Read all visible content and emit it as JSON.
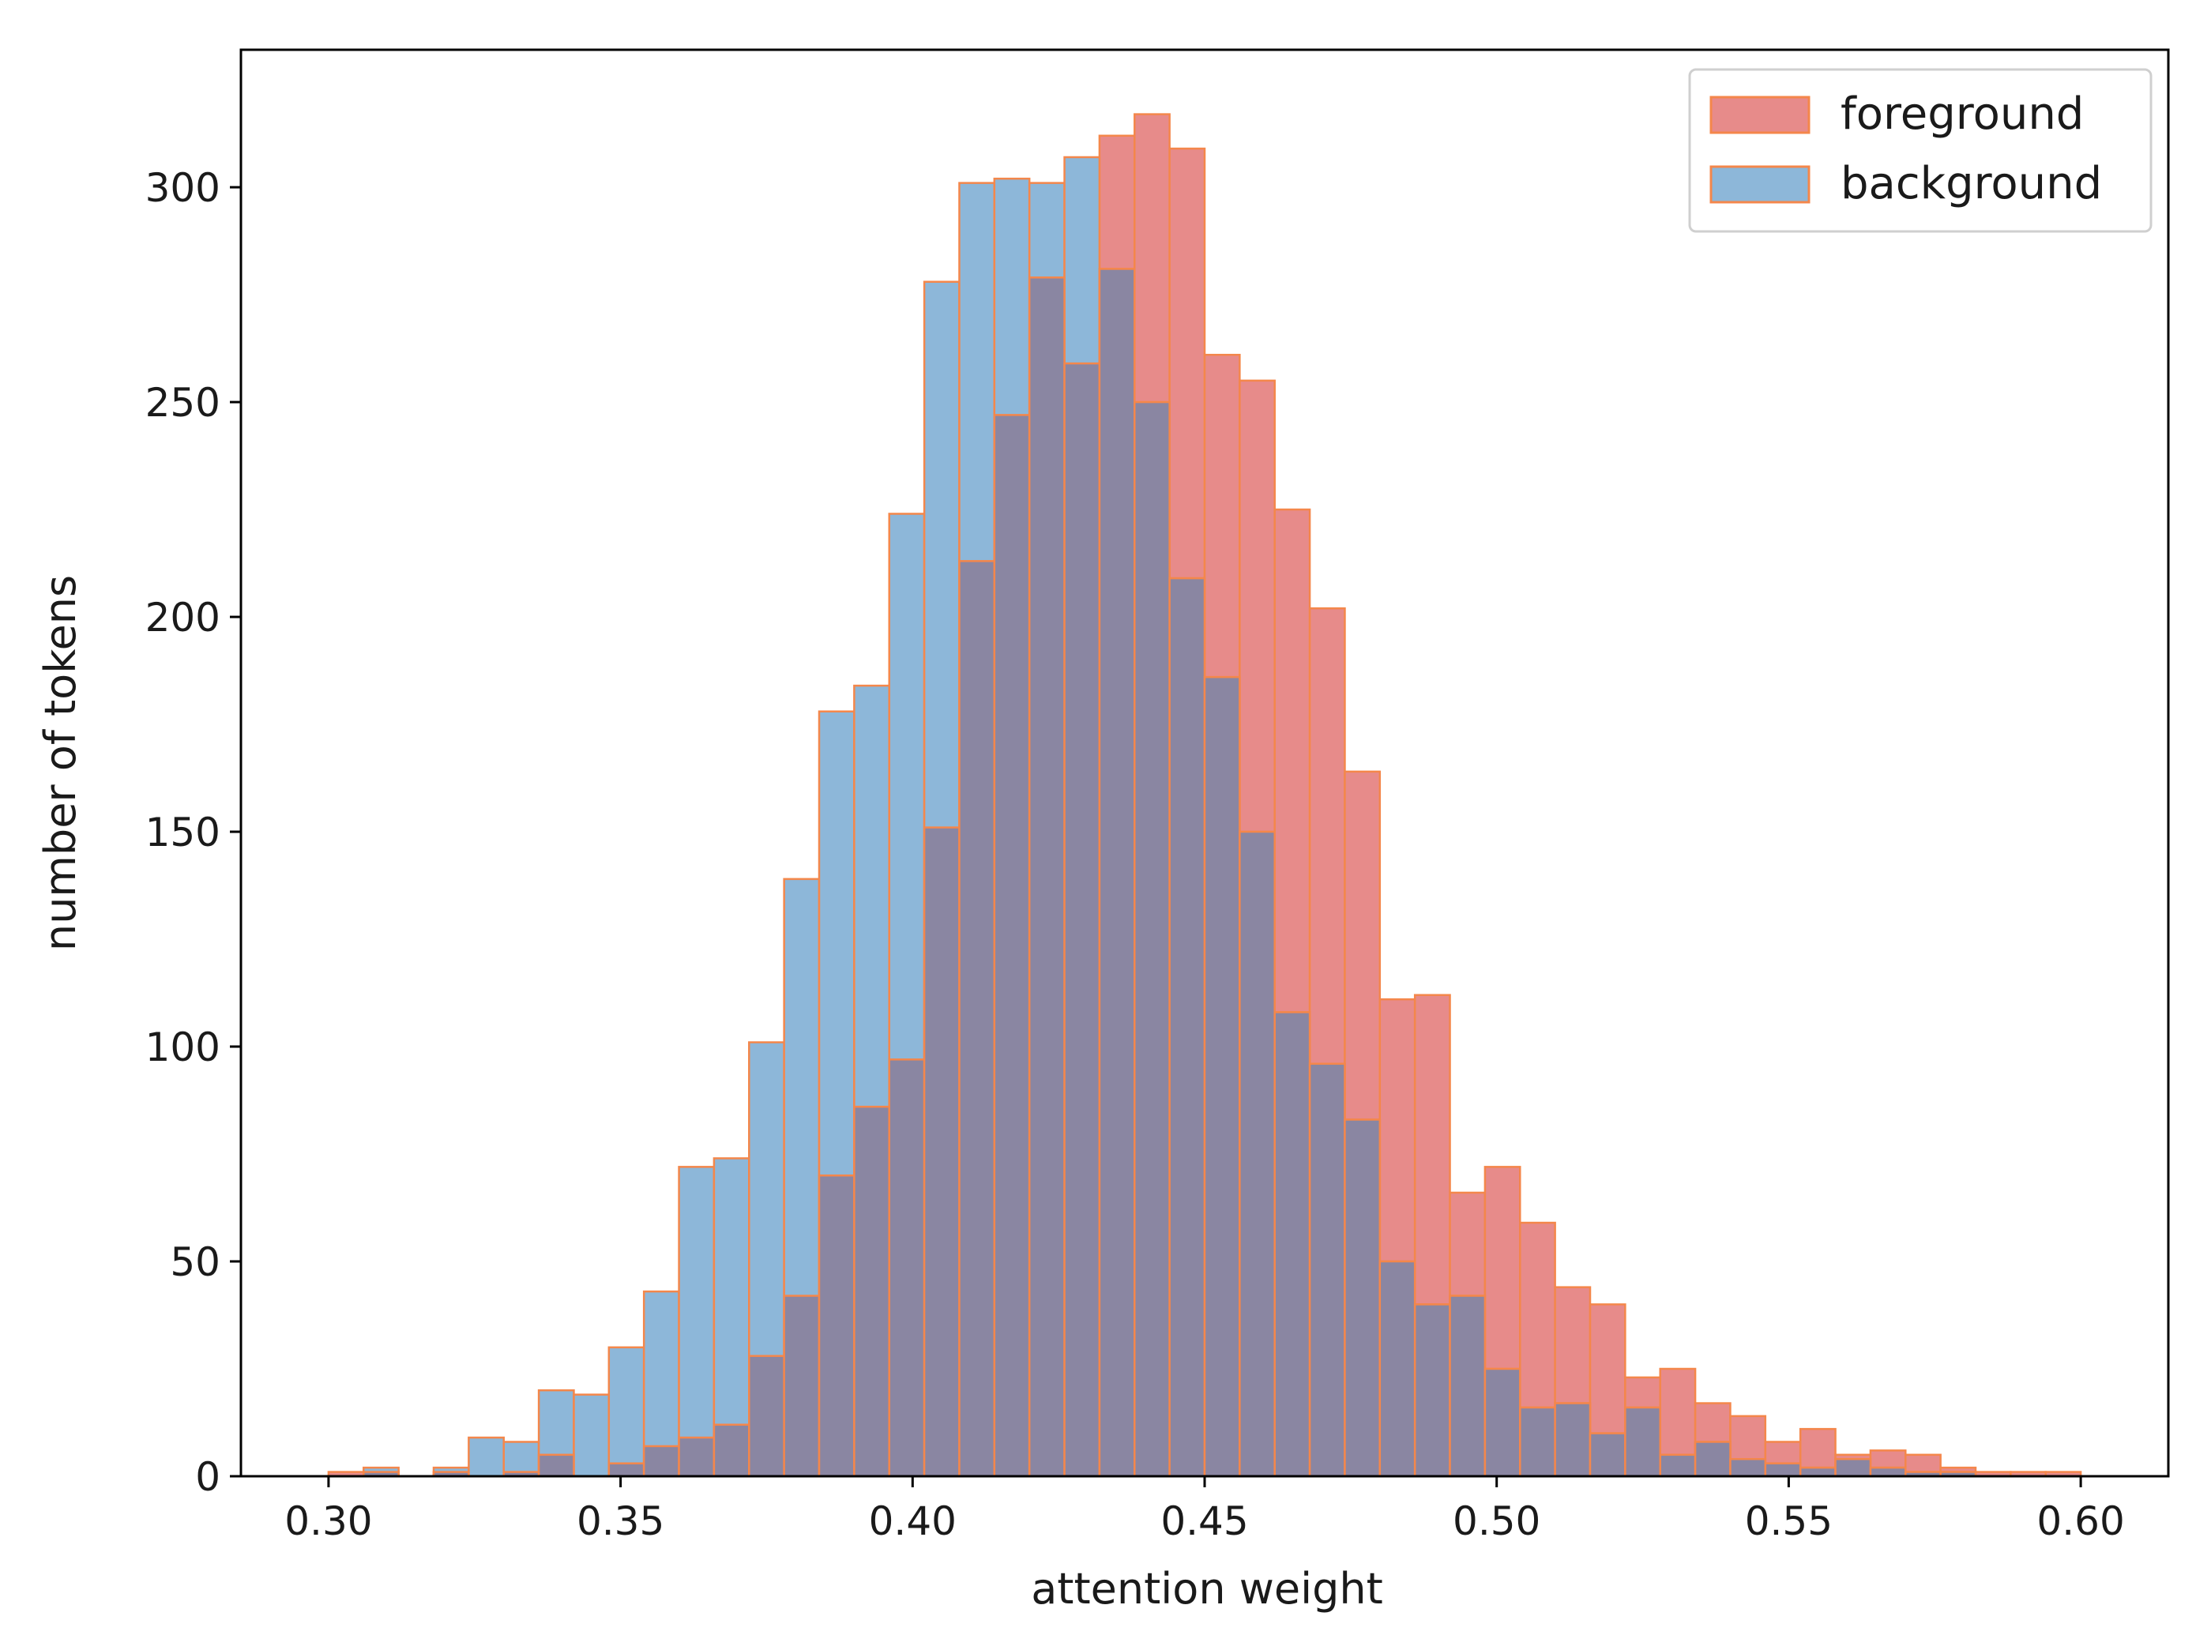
{
  "chart_data": {
    "type": "bar",
    "subtype": "overlaid-histogram",
    "title": "",
    "xlabel": "attention weight",
    "ylabel": "number of tokens",
    "xlim": [
      0.285,
      0.615
    ],
    "ylim": [
      0,
      332
    ],
    "x_ticks": [
      0.3,
      0.35,
      0.4,
      0.45,
      0.5,
      0.55,
      0.6
    ],
    "x_tick_labels": [
      "0.30",
      "0.35",
      "0.40",
      "0.45",
      "0.50",
      "0.55",
      "0.60"
    ],
    "y_ticks": [
      0,
      50,
      100,
      150,
      200,
      250,
      300
    ],
    "y_tick_labels": [
      "0",
      "50",
      "100",
      "150",
      "200",
      "250",
      "300"
    ],
    "bin_start": 0.3,
    "bin_width": 0.006,
    "edge_color": "#F4874B",
    "overlap_color": "#8A86A2",
    "legend_position": "top-right",
    "series": [
      {
        "name": "foreground",
        "color": "#E78B8A",
        "values": [
          1,
          1,
          0,
          1,
          0,
          1,
          5,
          0,
          3,
          7,
          9,
          12,
          28,
          42,
          70,
          86,
          97,
          151,
          213,
          247,
          279,
          259,
          312,
          317,
          309,
          261,
          255,
          225,
          202,
          164,
          111,
          112,
          66,
          72,
          59,
          44,
          40,
          23,
          25,
          17,
          14,
          8,
          11,
          5,
          6,
          5,
          2,
          1,
          1,
          1,
          0
        ]
      },
      {
        "name": "background",
        "color": "#8DB7D9",
        "values": [
          0,
          2,
          0,
          2,
          9,
          8,
          20,
          19,
          30,
          43,
          72,
          74,
          101,
          139,
          178,
          184,
          224,
          278,
          301,
          302,
          301,
          307,
          281,
          250,
          209,
          186,
          150,
          108,
          96,
          83,
          50,
          40,
          42,
          25,
          16,
          17,
          10,
          16,
          5,
          8,
          4,
          3,
          2,
          4,
          2,
          1,
          1,
          0,
          0,
          0,
          0
        ]
      }
    ]
  }
}
